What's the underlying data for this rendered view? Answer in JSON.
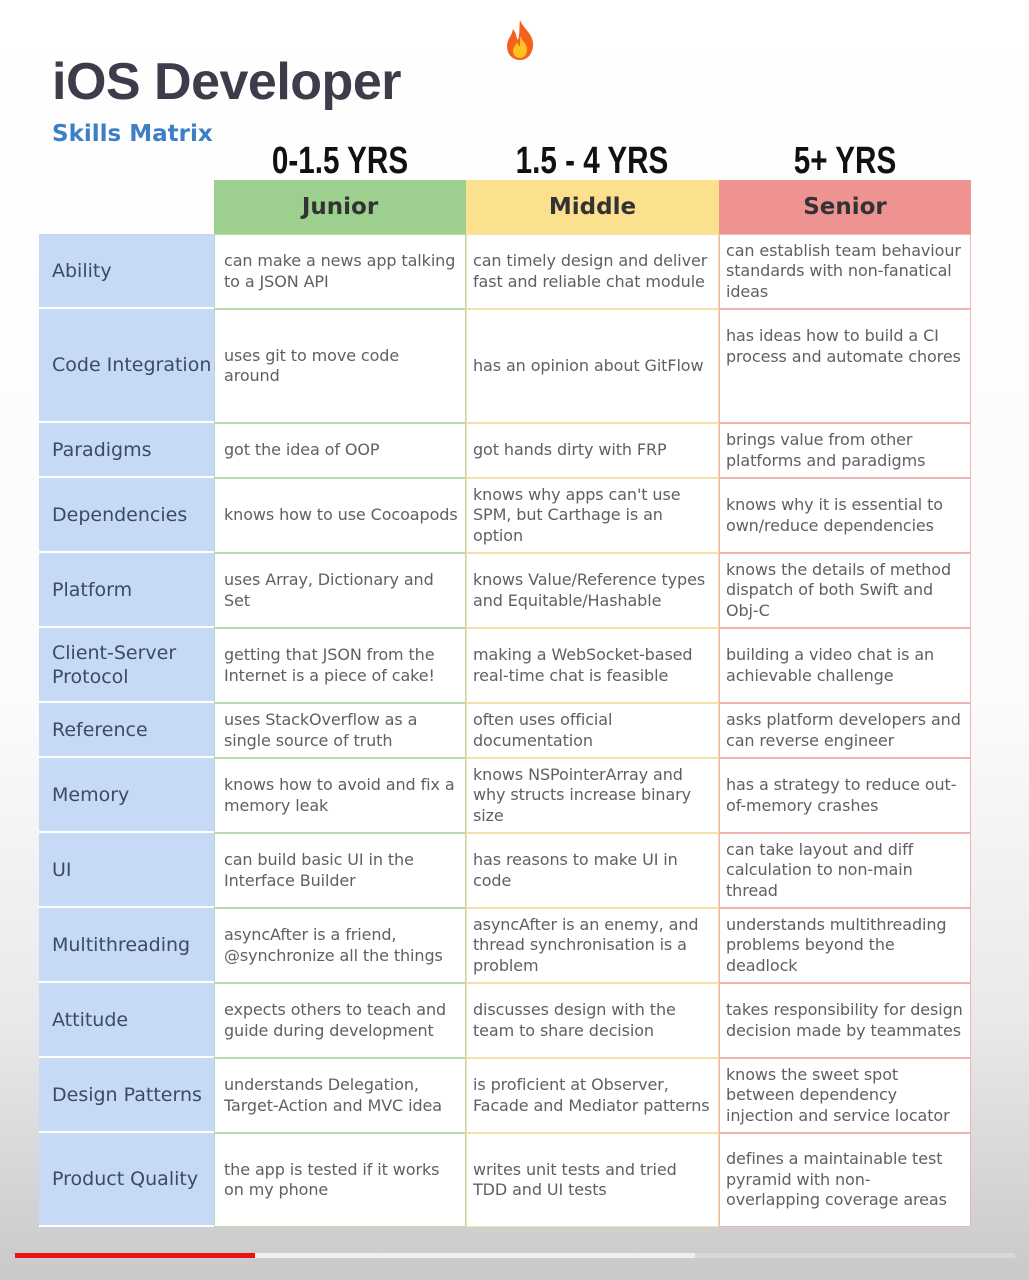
{
  "header": {
    "title": "iOS Developer",
    "subtitle": "Skills Matrix",
    "icon": "fire-icon"
  },
  "matrix": {
    "experience": [
      "0-1.5 YRS",
      "1.5 - 4 YRS",
      "5+ YRS"
    ],
    "levels": [
      "Junior",
      "Middle",
      "Senior"
    ],
    "level_colors": [
      "#9dcf8e",
      "#fbe08e",
      "#ee9392"
    ],
    "rows": [
      {
        "skill": "Ability",
        "junior": "can make a news app talking to a JSON API",
        "middle": "can timely design and deliver fast and reliable chat module",
        "senior": "can establish team behaviour standards with non-fanatical ideas"
      },
      {
        "skill": "Code Integration",
        "junior": "uses git to move code around",
        "middle": "has an opinion about GitFlow",
        "senior": "has ideas how to build a CI process and automate chores"
      },
      {
        "skill": "Paradigms",
        "junior": "got the idea of OOP",
        "middle": "got hands dirty with FRP",
        "senior": "brings value from other platforms and paradigms"
      },
      {
        "skill": "Dependencies",
        "junior": "knows how to use Cocoapods",
        "middle": "knows why apps can't use SPM, but Carthage is an option",
        "senior": "knows why it is essential to own/reduce dependencies"
      },
      {
        "skill": "Platform",
        "junior": "uses Array, Dictionary and Set",
        "middle": "knows Value/Reference types and Equitable/Hashable",
        "senior": "knows the details of method dispatch of both Swift and Obj-C"
      },
      {
        "skill": "Client-Server Protocol",
        "junior": "getting that JSON from the Internet is a piece of cake!",
        "middle": "making a WebSocket-based real-time chat is feasible",
        "senior": "building a video chat is an achievable challenge"
      },
      {
        "skill": "Reference",
        "junior": "uses StackOverflow as a single source of truth",
        "middle": "often uses official documentation",
        "senior": "asks platform developers and can reverse engineer"
      },
      {
        "skill": "Memory",
        "junior": "knows how to avoid and fix a memory leak",
        "middle": "knows NSPointerArray and why structs increase binary size",
        "senior": "has a strategy to reduce out-of-memory crashes"
      },
      {
        "skill": "UI",
        "junior": "can build basic UI in the Interface Builder",
        "middle": "has reasons to make UI in code",
        "senior": "can take layout and diff calculation to non-main thread"
      },
      {
        "skill": "Multithreading",
        "junior": "asyncAfter is a friend, @synchronize all the things",
        "middle": "asyncAfter is an enemy, and thread synchronisation is a problem",
        "senior": "understands multithreading problems beyond the deadlock"
      },
      {
        "skill": "Attitude",
        "junior": "expects others to teach and guide during development",
        "middle": "discusses design with the team to share decision",
        "senior": "takes responsibility for design decision made by teammates"
      },
      {
        "skill": "Design Patterns",
        "junior": "understands Delegation, Target-Action and MVC idea",
        "middle": "is proficient at Observer, Facade and Mediator patterns",
        "senior": "knows the sweet spot between dependency injection and service locator"
      },
      {
        "skill": "Product Quality",
        "junior": "the app is tested if it works on my phone",
        "middle": "writes unit tests and tried TDD and UI tests",
        "senior": "defines a maintainable test pyramid with non-overlapping coverage areas"
      }
    ]
  },
  "video": {
    "progress_played": 0.24,
    "progress_buffered": 0.68,
    "played_color": "#e81414"
  }
}
